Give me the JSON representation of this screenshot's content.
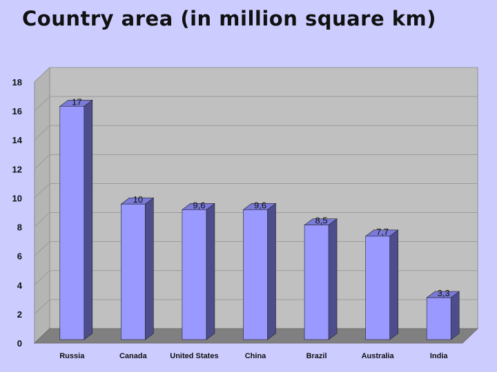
{
  "title": "Country area (in million square km)",
  "colors": {
    "background": "#ccccff",
    "plot_wall": "#c0c0c0",
    "plot_floor": "#808080",
    "bar_front": "#9999ff",
    "bar_side": "#4d4d8c",
    "bar_top": "#7a7ad9"
  },
  "chart_data": {
    "type": "bar",
    "title": "Country area (in million square km)",
    "categories": [
      "Russia",
      "Canada",
      "United States",
      "China",
      "Brazil",
      "Australia",
      "India"
    ],
    "values": [
      17,
      10,
      9.6,
      9.6,
      8.5,
      7.7,
      3.3
    ],
    "value_labels": [
      "17",
      "10",
      "9,6",
      "9,6",
      "8,5",
      "7,7",
      "3,3"
    ],
    "ylim": [
      0,
      18
    ],
    "yticks": [
      0,
      2,
      4,
      6,
      8,
      10,
      12,
      14,
      16,
      18
    ],
    "xlabel": "",
    "ylabel": "",
    "grid": true,
    "style": "3d-column",
    "legend": "none"
  }
}
